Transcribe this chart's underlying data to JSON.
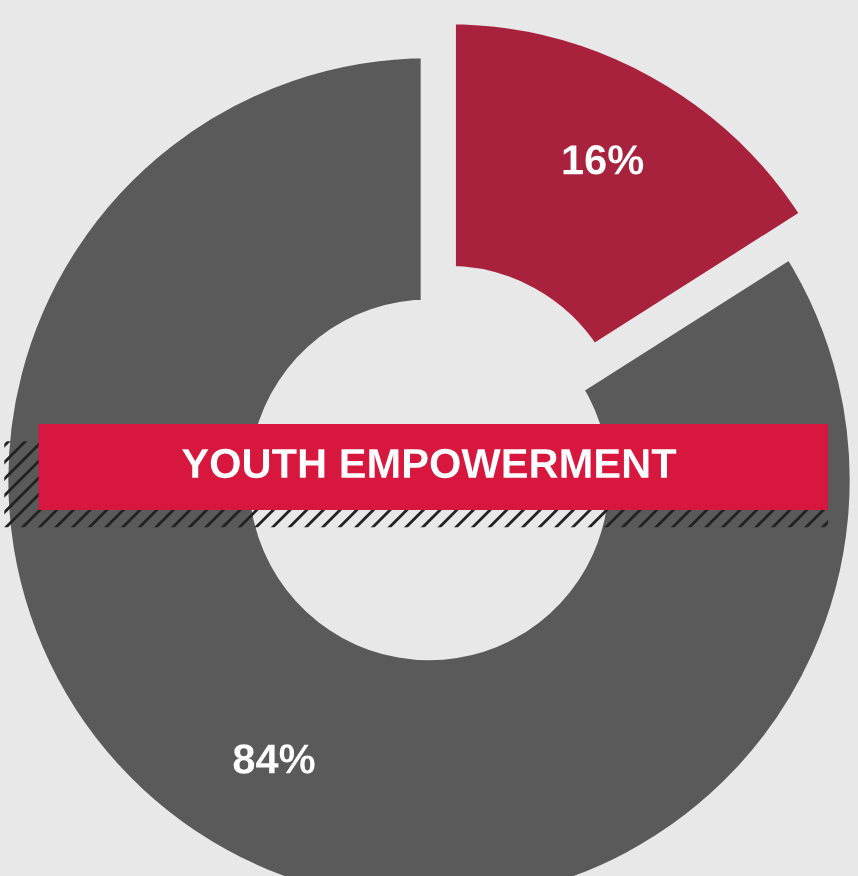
{
  "chart_data": {
    "type": "donut",
    "title": "YOUTH EMPOWERMENT",
    "categories": [
      null,
      null
    ],
    "values": [
      16,
      84
    ],
    "colors": [
      "#a8223e",
      "#5a5a5a"
    ],
    "value_labels": [
      "16%",
      "84%"
    ]
  }
}
